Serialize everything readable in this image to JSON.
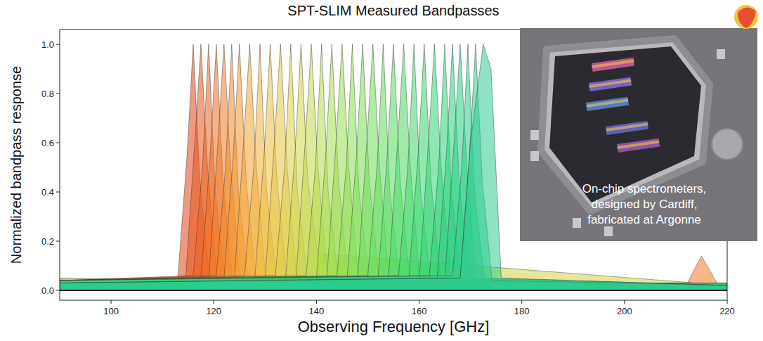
{
  "chart_data": {
    "type": "area",
    "title": "SPT-SLIM Measured Bandpasses",
    "x_label": "Observing Frequency [GHz]",
    "y_label": "Normalized bandpass response",
    "annotations": [
      "On-chip spectrometers,",
      "designed by Cardiff,",
      "fabricated at Argonne"
    ],
    "xlim": [
      90,
      220
    ],
    "ylim": [
      -0.04,
      1.06
    ],
    "xticks": [
      100,
      120,
      140,
      160,
      180,
      200,
      220
    ],
    "yticks": [
      {
        "value": 0,
        "label": "0.0"
      },
      0.2,
      0.4,
      0.6,
      0.8,
      {
        "value": 1,
        "label": "1.0"
      }
    ],
    "grid": false,
    "series": [
      {
        "color": "#e2461a",
        "x": [
          90,
          113,
          114.8,
          116,
          117.3,
          119.2,
          220
        ],
        "values": [
          0.03,
          0.05,
          0.55,
          1,
          0.45,
          0.04,
          0.02
        ]
      },
      {
        "color": "#e8541c",
        "x": [
          90,
          114.5,
          116.3,
          117.5,
          118.8,
          120.7,
          220
        ],
        "values": [
          0.02,
          0.04,
          0.6,
          1,
          0.5,
          0.03,
          0.03
        ]
      },
      {
        "color": "#ec6220",
        "x": [
          90,
          116,
          117.8,
          119,
          120.3,
          122.2,
          220
        ],
        "values": [
          0.04,
          0.06,
          0.5,
          1,
          0.4,
          0.05,
          0.02
        ]
      },
      {
        "color": "#ef6f24",
        "x": [
          90,
          117.5,
          119.3,
          120.5,
          121.8,
          123.7,
          220
        ],
        "values": [
          0.03,
          0.05,
          0.55,
          1,
          0.45,
          0.04,
          0.02
        ]
      },
      {
        "color": "#f17c28",
        "x": [
          90,
          119,
          120.8,
          122,
          123.3,
          125.2,
          212,
          215,
          218,
          220
        ],
        "values": [
          0.05,
          0.04,
          0.6,
          1,
          0.5,
          0.03,
          0.02,
          0.14,
          0.03,
          0.02
        ]
      },
      {
        "color": "#f3892c",
        "x": [
          90,
          120.5,
          122.3,
          123.5,
          124.8,
          126.7,
          220
        ],
        "values": [
          0.04,
          0.06,
          0.5,
          1,
          0.4,
          0.05,
          0.02
        ]
      },
      {
        "color": "#f49630",
        "x": [
          90,
          122,
          123.8,
          125,
          126.3,
          128.2,
          220
        ],
        "values": [
          0.03,
          0.05,
          0.55,
          1,
          0.45,
          0.04,
          0.02
        ]
      },
      {
        "color": "#f4a335",
        "x": [
          90,
          124,
          125.8,
          127,
          128.3,
          130.2,
          220
        ],
        "values": [
          0.02,
          0.04,
          0.6,
          1,
          0.5,
          0.03,
          0.03
        ]
      },
      {
        "color": "#f2b03a",
        "x": [
          90,
          126,
          127.8,
          129,
          130.3,
          132.2,
          220
        ],
        "values": [
          0.04,
          0.06,
          0.5,
          1,
          0.4,
          0.05,
          0.02
        ]
      },
      {
        "color": "#ecbd3d",
        "x": [
          90,
          128,
          129.8,
          131,
          132.3,
          134.2,
          220
        ],
        "values": [
          0.03,
          0.05,
          0.55,
          1,
          0.45,
          0.04,
          0.02
        ]
      },
      {
        "color": "#e4c740",
        "x": [
          90,
          130,
          131.8,
          133,
          134.3,
          136.2,
          220
        ],
        "values": [
          0.02,
          0.04,
          0.6,
          1,
          0.5,
          0.03,
          0.03
        ]
      },
      {
        "color": "#dacf43",
        "x": [
          90,
          132,
          133.8,
          135,
          136.3,
          138.2,
          220
        ],
        "values": [
          0.04,
          0.06,
          0.5,
          1,
          0.4,
          0.05,
          0.02
        ]
      },
      {
        "color": "#cfd446",
        "x": [
          90,
          134,
          135.8,
          137,
          138.3,
          140.2,
          220
        ],
        "values": [
          0.03,
          0.05,
          0.55,
          1,
          0.45,
          0.15,
          0.02
        ]
      },
      {
        "color": "#c2d748",
        "x": [
          90,
          136,
          137.8,
          139,
          140.3,
          142.2,
          220
        ],
        "values": [
          0.02,
          0.04,
          0.6,
          1,
          0.5,
          0.03,
          0.03
        ]
      },
      {
        "color": "#b4da4a",
        "x": [
          90,
          138,
          139.8,
          141,
          142.3,
          144.2,
          220
        ],
        "values": [
          0.04,
          0.06,
          0.5,
          1,
          0.4,
          0.05,
          0.02
        ]
      },
      {
        "color": "#a6dc4d",
        "x": [
          90,
          140,
          141.8,
          143,
          144.3,
          146.2,
          220
        ],
        "values": [
          0.03,
          0.05,
          0.55,
          1,
          0.45,
          0.04,
          0.02
        ]
      },
      {
        "color": "#98dd50",
        "x": [
          90,
          142,
          143.8,
          145,
          146.3,
          148.2,
          220
        ],
        "values": [
          0.02,
          0.04,
          0.6,
          1,
          0.5,
          0.03,
          0.03
        ]
      },
      {
        "color": "#8ade53",
        "x": [
          90,
          144,
          145.8,
          147,
          148.3,
          150.2,
          220
        ],
        "values": [
          0.04,
          0.06,
          0.5,
          1,
          0.4,
          0.05,
          0.02
        ]
      },
      {
        "color": "#7cde56",
        "x": [
          90,
          146,
          147.8,
          149,
          150.3,
          152.2,
          220
        ],
        "values": [
          0.03,
          0.05,
          0.55,
          1,
          0.45,
          0.04,
          0.02
        ]
      },
      {
        "color": "#6edd5a",
        "x": [
          90,
          148,
          149.8,
          151,
          152.3,
          154.2,
          220
        ],
        "values": [
          0.02,
          0.04,
          0.6,
          1,
          0.5,
          0.03,
          0.03
        ]
      },
      {
        "color": "#62dc5e",
        "x": [
          90,
          150,
          151.8,
          153,
          154.3,
          156.2,
          220
        ],
        "values": [
          0.04,
          0.06,
          0.5,
          1,
          0.4,
          0.05,
          0.02
        ]
      },
      {
        "color": "#56db62",
        "x": [
          90,
          152,
          153.8,
          155,
          156.3,
          158.2,
          220
        ],
        "values": [
          0.03,
          0.05,
          0.55,
          1,
          0.45,
          0.04,
          0.02
        ]
      },
      {
        "color": "#4cd966",
        "x": [
          90,
          154,
          155.8,
          157,
          158.3,
          160.2,
          220
        ],
        "values": [
          0.02,
          0.04,
          0.6,
          1,
          0.5,
          0.03,
          0.03
        ]
      },
      {
        "color": "#42d86b",
        "x": [
          90,
          156,
          157.8,
          159,
          160.3,
          162.2,
          220
        ],
        "values": [
          0.04,
          0.06,
          0.5,
          1,
          0.4,
          0.05,
          0.02
        ]
      },
      {
        "color": "#3ad670",
        "x": [
          90,
          158,
          159.8,
          161,
          162.3,
          164.2,
          220
        ],
        "values": [
          0.03,
          0.05,
          0.55,
          1,
          0.45,
          0.04,
          0.02
        ]
      },
      {
        "color": "#33d475",
        "x": [
          90,
          160,
          161.8,
          163,
          164.3,
          166.2,
          220
        ],
        "values": [
          0.02,
          0.04,
          0.6,
          1,
          0.5,
          0.03,
          0.03
        ]
      },
      {
        "color": "#2ed27a",
        "x": [
          90,
          162,
          163.8,
          165,
          166.3,
          168.2,
          220
        ],
        "values": [
          0.04,
          0.06,
          0.5,
          1,
          0.4,
          0.05,
          0.02
        ]
      },
      {
        "color": "#2ad07f",
        "x": [
          90,
          163.5,
          165.3,
          166.5,
          167.8,
          169.7,
          220
        ],
        "values": [
          0.03,
          0.05,
          0.55,
          1,
          0.45,
          0.04,
          0.02
        ]
      },
      {
        "color": "#28ce84",
        "x": [
          90,
          165,
          166.8,
          168,
          169.3,
          171.2,
          220
        ],
        "values": [
          0.02,
          0.04,
          0.6,
          1,
          0.5,
          0.03,
          0.03
        ]
      },
      {
        "color": "#29cd89",
        "x": [
          90,
          166.5,
          168.3,
          169.5,
          170.8,
          172.7,
          220
        ],
        "values": [
          0.04,
          0.06,
          0.5,
          1,
          0.4,
          0.05,
          0.02
        ]
      },
      {
        "color": "#2ccc8d",
        "x": [
          90,
          168,
          169.8,
          171,
          172.3,
          174.2,
          220
        ],
        "values": [
          0.03,
          0.05,
          0.55,
          1,
          0.45,
          0.04,
          0.02
        ]
      },
      {
        "color": "#30cc92",
        "x": [
          90,
          168,
          170,
          172.5,
          174,
          176,
          220
        ],
        "values": [
          0.03,
          0.05,
          0.6,
          1,
          0.9,
          0.05,
          0.02
        ]
      }
    ]
  }
}
